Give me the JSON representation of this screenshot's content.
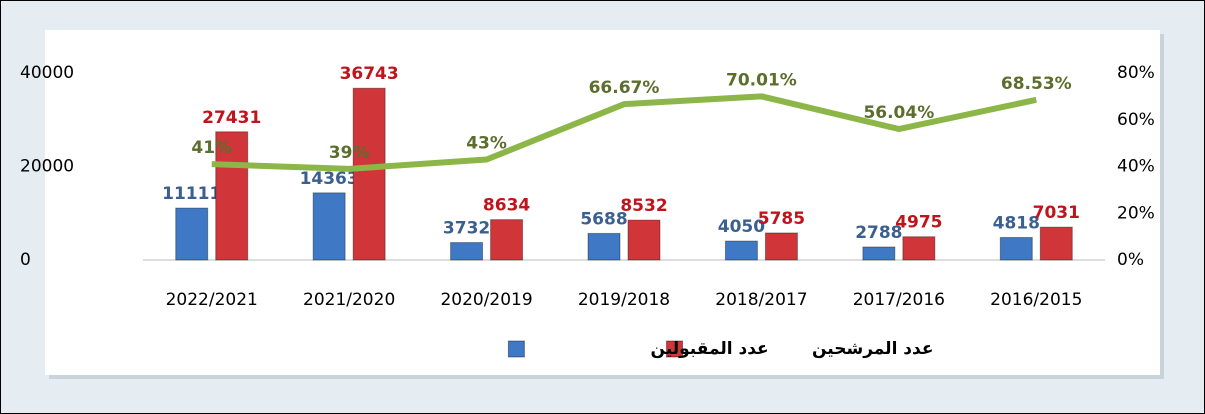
{
  "chart_data": {
    "type": "bar",
    "categories": [
      "2022/2021",
      "2021/2020",
      "2020/2019",
      "2019/2018",
      "2018/2017",
      "2017/2016",
      "2016/2015"
    ],
    "series": [
      {
        "name": "عدد المقبولين",
        "color": "#3f78c4",
        "values": [
          11111,
          14363,
          3732,
          5688,
          4050,
          2788,
          4818
        ]
      },
      {
        "name": "عدد المرشحين",
        "color": "#d0353a",
        "values": [
          27431,
          36743,
          8634,
          8532,
          5785,
          4975,
          7031
        ]
      },
      {
        "name": null,
        "type": "line",
        "axis": "y2",
        "color": "#8db648",
        "values": [
          41,
          39,
          43,
          66.67,
          70.01,
          56.04,
          68.53
        ],
        "value_labels": [
          "41%",
          "39%",
          "43%",
          "66.67%",
          "70.01%",
          "56.04%",
          "68.53%"
        ]
      }
    ],
    "ylim": [
      0,
      40000
    ],
    "yticks": [
      0,
      20000,
      40000
    ],
    "y2lim": [
      0,
      80
    ],
    "y2ticks": [
      {
        "value": 0,
        "label": "0%"
      },
      {
        "value": 20,
        "label": "20%"
      },
      {
        "value": 40,
        "label": "40%"
      },
      {
        "value": 60,
        "label": "60%"
      },
      {
        "value": 80,
        "label": "80%"
      }
    ],
    "legend": "bottom"
  }
}
